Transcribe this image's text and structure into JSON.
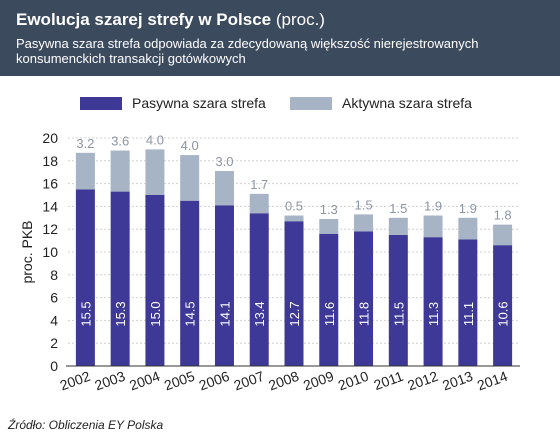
{
  "header": {
    "title_main": "Ewolucja szarej strefy w Polsce",
    "title_suffix": " (proc.)",
    "subtitle": "Pasywna szara strefa odpowiada za zdecydowaną większość nierejestrowanych konsumenckich transakcji gotówkowych"
  },
  "legend": {
    "passive": "Pasywna szara strefa",
    "active": "Aktywna szara strefa"
  },
  "colors": {
    "passive": "#3e3896",
    "active": "#a6b4c6",
    "header_bg": "#3c4a5e",
    "grid": "#d0d0d0",
    "axis": "#333333",
    "active_label": "#8c96a3"
  },
  "source": "Źródło: Obliczenia EY Polska",
  "chart_data": {
    "type": "bar",
    "stacked": true,
    "title": "Ewolucja szarej strefy w Polsce (proc.)",
    "ylabel": "proc. PKB",
    "ylim": [
      0,
      20
    ],
    "yticks": [
      0,
      2,
      4,
      6,
      8,
      10,
      12,
      14,
      16,
      18,
      20
    ],
    "grid": true,
    "legend_position": "top",
    "categories": [
      "2002",
      "2003",
      "2004",
      "2005",
      "2006",
      "2007",
      "2008",
      "2009",
      "2010",
      "2011",
      "2012",
      "2013",
      "2014"
    ],
    "series": [
      {
        "name": "Pasywna szara strefa",
        "values": [
          15.5,
          15.3,
          15.0,
          14.5,
          14.1,
          13.4,
          12.7,
          11.6,
          11.8,
          11.5,
          11.3,
          11.1,
          10.6
        ]
      },
      {
        "name": "Aktywna szara strefa",
        "values": [
          3.2,
          3.6,
          4.0,
          4.0,
          3.0,
          1.7,
          0.5,
          1.3,
          1.5,
          1.5,
          1.9,
          1.9,
          1.8
        ]
      }
    ]
  }
}
